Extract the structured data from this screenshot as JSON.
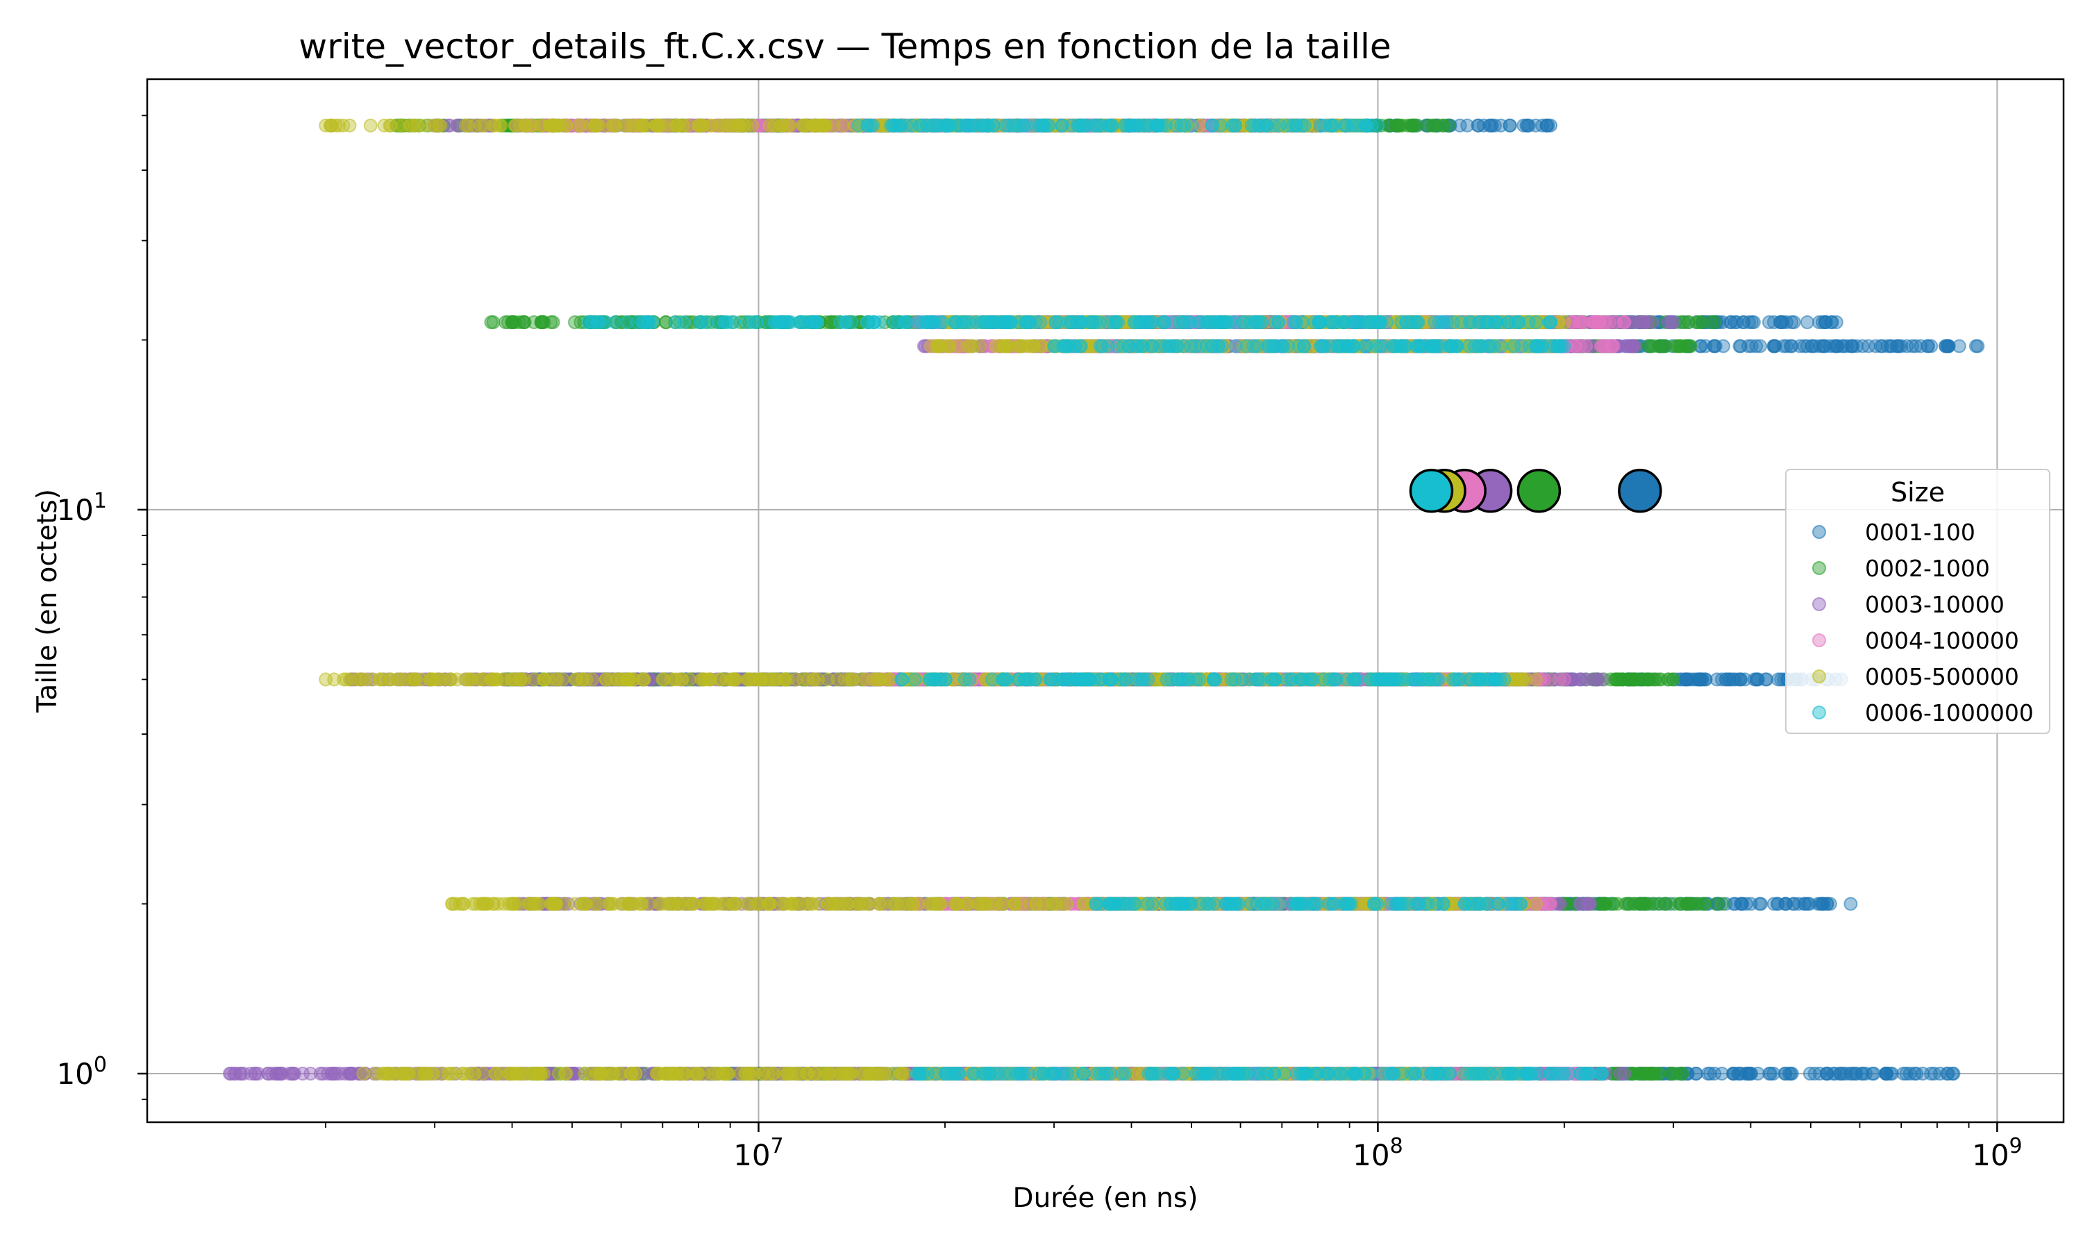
{
  "chart_data": {
    "type": "scatter",
    "title": "write_vector_details_ft.C.x.csv — Temps en fonction de la taille",
    "xlabel": "Durée (en ns)",
    "ylabel": "Taille (en octets)",
    "xscale": "log",
    "yscale": "log",
    "xlim": [
      1030000,
      1280000000
    ],
    "ylim": [
      0.82,
      58
    ],
    "x_major_ticks": [
      {
        "value": 10000000,
        "base": "10",
        "exp": "7"
      },
      {
        "value": 100000000,
        "base": "10",
        "exp": "8"
      },
      {
        "value": 1000000000,
        "base": "10",
        "exp": "9"
      }
    ],
    "y_major_ticks": [
      {
        "value": 1,
        "base": "10",
        "exp": "0"
      },
      {
        "value": 10,
        "base": "10",
        "exp": "1"
      }
    ],
    "grid": true,
    "legend": {
      "title": "Size",
      "position": "right"
    },
    "series": [
      {
        "name": "0001-100",
        "color": "#1f77b4",
        "mean_point": {
          "x": 265000000,
          "y": 10.8
        },
        "point_groups": [
          {
            "y": 48,
            "x_min": 7000000,
            "x_max": 190000000
          },
          {
            "y": 21.5,
            "x_min": 60000000,
            "x_max": 550000000
          },
          {
            "y": 19.5,
            "x_min": 50000000,
            "x_max": 930000000
          },
          {
            "y": 5,
            "x_min": 3900000,
            "x_max": 560000000
          },
          {
            "y": 2,
            "x_min": 35000000,
            "x_max": 580000000
          },
          {
            "y": 1,
            "x_min": 9000000,
            "x_max": 850000000
          }
        ]
      },
      {
        "name": "0002-1000",
        "color": "#2ca02c",
        "mean_point": {
          "x": 182000000,
          "y": 10.8
        },
        "point_groups": [
          {
            "y": 48,
            "x_min": 2600000,
            "x_max": 130000000
          },
          {
            "y": 21.5,
            "x_min": 3700000,
            "x_max": 350000000
          },
          {
            "y": 19.5,
            "x_min": 31000000,
            "x_max": 320000000
          },
          {
            "y": 5,
            "x_min": 3900000,
            "x_max": 300000000
          },
          {
            "y": 2,
            "x_min": 16500000,
            "x_max": 360000000
          },
          {
            "y": 1,
            "x_min": 4300000,
            "x_max": 310000000
          }
        ]
      },
      {
        "name": "0003-10000",
        "color": "#9467bd",
        "mean_point": {
          "x": 152000000,
          "y": 10.8
        },
        "point_groups": [
          {
            "y": 48,
            "x_min": 3000000,
            "x_max": 90000000
          },
          {
            "y": 21.5,
            "x_min": 19000000,
            "x_max": 300000000
          },
          {
            "y": 19.5,
            "x_min": 18500000,
            "x_max": 260000000
          },
          {
            "y": 5,
            "x_min": 2200000,
            "x_max": 230000000
          },
          {
            "y": 2,
            "x_min": 4100000,
            "x_max": 220000000
          },
          {
            "y": 1,
            "x_min": 1400000,
            "x_max": 250000000
          }
        ]
      },
      {
        "name": "0004-100000",
        "color": "#e377c2",
        "mean_point": {
          "x": 138000000,
          "y": 10.8
        },
        "point_groups": [
          {
            "y": 48,
            "x_min": 4200000,
            "x_max": 85000000
          },
          {
            "y": 21.5,
            "x_min": 18000000,
            "x_max": 250000000
          },
          {
            "y": 19.5,
            "x_min": 19000000,
            "x_max": 240000000
          },
          {
            "y": 5,
            "x_min": 15000000,
            "x_max": 200000000
          },
          {
            "y": 2,
            "x_min": 18000000,
            "x_max": 190000000
          },
          {
            "y": 1,
            "x_min": 20000000,
            "x_max": 220000000
          }
        ]
      },
      {
        "name": "0005-500000",
        "color": "#bcbd22",
        "mean_point": {
          "x": 128000000,
          "y": 10.8
        },
        "point_groups": [
          {
            "y": 48,
            "x_min": 2000000,
            "x_max": 95000000
          },
          {
            "y": 21.5,
            "x_min": 20000000,
            "x_max": 200000000
          },
          {
            "y": 19.5,
            "x_min": 19000000,
            "x_max": 190000000
          },
          {
            "y": 5,
            "x_min": 2000000,
            "x_max": 180000000
          },
          {
            "y": 2,
            "x_min": 3200000,
            "x_max": 180000000
          },
          {
            "y": 1,
            "x_min": 2300000,
            "x_max": 170000000
          }
        ]
      },
      {
        "name": "0006-1000000",
        "color": "#17becf",
        "mean_point": {
          "x": 122000000,
          "y": 10.8
        },
        "point_groups": [
          {
            "y": 48,
            "x_min": 14500000,
            "x_max": 100000000
          },
          {
            "y": 21.5,
            "x_min": 5300000,
            "x_max": 190000000
          },
          {
            "y": 19.5,
            "x_min": 30000000,
            "x_max": 200000000
          },
          {
            "y": 5,
            "x_min": 17000000,
            "x_max": 160000000
          },
          {
            "y": 2,
            "x_min": 35000000,
            "x_max": 170000000
          },
          {
            "y": 1,
            "x_min": 18000000,
            "x_max": 230000000
          }
        ]
      }
    ]
  }
}
